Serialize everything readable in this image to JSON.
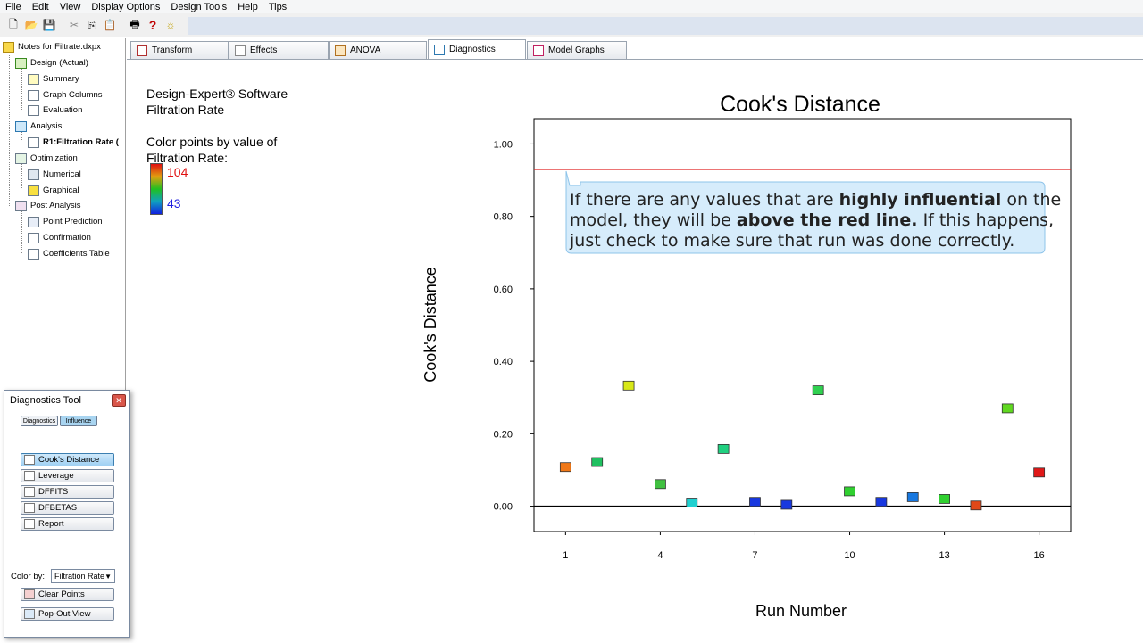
{
  "menu": [
    "File",
    "Edit",
    "View",
    "Display Options",
    "Design Tools",
    "Help",
    "Tips"
  ],
  "toolbar_icons": [
    "new-icon",
    "open-icon",
    "save-icon",
    "cut-icon",
    "copy-icon",
    "paste-icon",
    "print-icon",
    "help-icon",
    "tip-icon"
  ],
  "tree": {
    "root": "Notes for Filtrate.dxpx",
    "design": "Design (Actual)",
    "summary": "Summary",
    "graph_columns": "Graph Columns",
    "evaluation": "Evaluation",
    "analysis": "Analysis",
    "r1": "R1:Filtration Rate (",
    "optimization": "Optimization",
    "numerical": "Numerical",
    "graphical": "Graphical",
    "post_analysis": "Post Analysis",
    "point_prediction": "Point Prediction",
    "confirmation": "Confirmation",
    "coefficients_table": "Coefficients Table"
  },
  "tabs": [
    "Transform",
    "Effects",
    "ANOVA",
    "Diagnostics",
    "Model Graphs"
  ],
  "info": {
    "line1": "Design-Expert® Software",
    "line2": "Filtration Rate",
    "line3": "Color points by value of",
    "line4": "Filtration Rate:",
    "high": "104",
    "low": "43"
  },
  "callout": {
    "line1_a": "If there are any values that are ",
    "line1_b": "highly influential",
    "line1_c": " on the",
    "line2_a": "model, they will be ",
    "line2_b": "above the red line.",
    "line2_c": "  If this happens,",
    "line3": "just check to make sure that run was done correctly."
  },
  "diagnostics_tool": {
    "title": "Diagnostics Tool",
    "tab1": "Diagnostics",
    "tab2": "Influence",
    "buttons": [
      "Cook's Distance",
      "Leverage",
      "DFFITS",
      "DFBETAS",
      "Report"
    ],
    "color_by_label": "Color by:",
    "color_by_value": "Filtration Rate",
    "clear_points": "Clear Points",
    "pop_out": "Pop-Out View"
  },
  "chart_data": {
    "type": "scatter",
    "title": "Cook's Distance",
    "xlabel": "Run Number",
    "ylabel": "Cook's Distance",
    "xlim": [
      0,
      17
    ],
    "ylim": [
      -0.07,
      1.07
    ],
    "xticks": [
      "1",
      "4",
      "7",
      "10",
      "13",
      "16"
    ],
    "yticks": [
      "0.00",
      "0.20",
      "0.40",
      "0.60",
      "0.80",
      "1.00"
    ],
    "threshold": 0.93,
    "threshold_color": "#e02020",
    "x": [
      1,
      2,
      3,
      4,
      5,
      6,
      7,
      8,
      9,
      10,
      11,
      12,
      13,
      14,
      15,
      16
    ],
    "y": [
      0.108,
      0.122,
      0.333,
      0.061,
      0.01,
      0.158,
      0.012,
      0.004,
      0.32,
      0.041,
      0.012,
      0.025,
      0.02,
      0.002,
      0.27,
      0.093
    ],
    "colors": [
      "#f07818",
      "#20c060",
      "#d8e818",
      "#40c040",
      "#20d0d0",
      "#20d080",
      "#1838e0",
      "#1838e0",
      "#30d050",
      "#30d030",
      "#1838e0",
      "#1878e0",
      "#30d030",
      "#e04818",
      "#60d820",
      "#e01818"
    ]
  }
}
